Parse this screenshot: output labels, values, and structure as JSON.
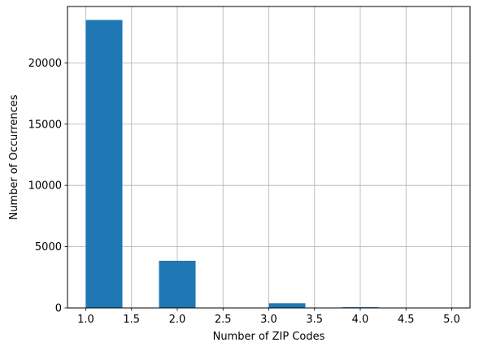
{
  "chart_data": {
    "type": "bar",
    "title": "",
    "xlabel": "Number of ZIP Codes",
    "ylabel": "Number of Occurrences",
    "xlim": [
      0.8,
      5.2
    ],
    "ylim": [
      0,
      24600
    ],
    "grid": true,
    "bar_color": "#1f77b4",
    "bins": [
      {
        "x0": 1.0,
        "x1": 1.4,
        "value": 23500
      },
      {
        "x0": 1.4,
        "x1": 1.8,
        "value": 0
      },
      {
        "x0": 1.8,
        "x1": 2.2,
        "value": 3850
      },
      {
        "x0": 2.2,
        "x1": 2.6,
        "value": 0
      },
      {
        "x0": 2.6,
        "x1": 3.0,
        "value": 0
      },
      {
        "x0": 3.0,
        "x1": 3.4,
        "value": 380
      },
      {
        "x0": 3.4,
        "x1": 3.8,
        "value": 0
      },
      {
        "x0": 3.8,
        "x1": 4.2,
        "value": 60
      },
      {
        "x0": 4.2,
        "x1": 4.6,
        "value": 0
      },
      {
        "x0": 4.6,
        "x1": 5.0,
        "value": 15
      }
    ],
    "xticks": [
      {
        "value": 1.0,
        "label": "1.0"
      },
      {
        "value": 1.5,
        "label": "1.5"
      },
      {
        "value": 2.0,
        "label": "2.0"
      },
      {
        "value": 2.5,
        "label": "2.5"
      },
      {
        "value": 3.0,
        "label": "3.0"
      },
      {
        "value": 3.5,
        "label": "3.5"
      },
      {
        "value": 4.0,
        "label": "4.0"
      },
      {
        "value": 4.5,
        "label": "4.5"
      },
      {
        "value": 5.0,
        "label": "5.0"
      }
    ],
    "yticks": [
      {
        "value": 0,
        "label": "0"
      },
      {
        "value": 5000,
        "label": "5000"
      },
      {
        "value": 10000,
        "label": "10000"
      },
      {
        "value": 15000,
        "label": "15000"
      },
      {
        "value": 20000,
        "label": "20000"
      }
    ]
  }
}
